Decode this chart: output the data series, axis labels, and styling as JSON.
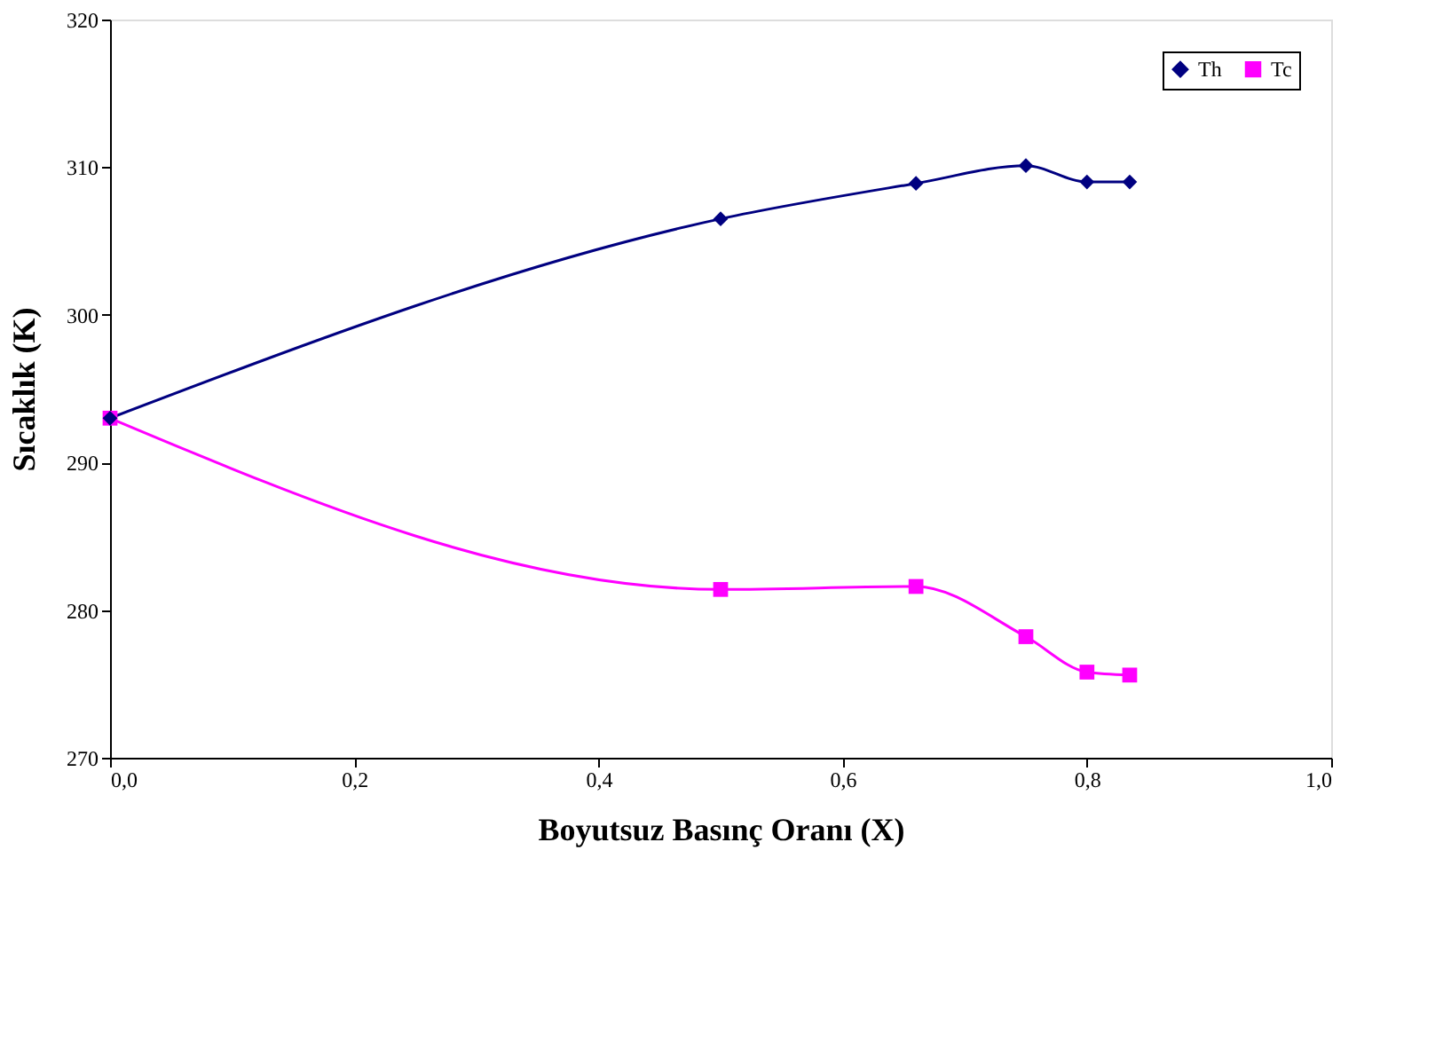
{
  "chart_data": {
    "type": "line",
    "xlabel": "Boyutsuz Basınç Oranı (X)",
    "ylabel": "Sıcaklık (K)",
    "xlim": [
      0,
      1
    ],
    "xticks": [
      {
        "value": 0,
        "label": "0,0"
      },
      {
        "value": 0.2,
        "label": "0,2"
      },
      {
        "value": 0.4,
        "label": "0,4"
      },
      {
        "value": 0.6,
        "label": "0,6"
      },
      {
        "value": 0.8,
        "label": "0,8"
      },
      {
        "value": 1,
        "label": "1,0"
      }
    ],
    "ylim": [
      270,
      320
    ],
    "yticks": [
      270,
      280,
      290,
      300,
      310,
      320
    ],
    "grid": false,
    "legend": "top right",
    "x": [
      0,
      0.5,
      0.66,
      0.75,
      0.8,
      0.835
    ],
    "series": [
      {
        "name": "Th",
        "color": "#000080",
        "marker": "diamond",
        "values": [
          293,
          306.5,
          308.9,
          310.1,
          309.0,
          309.0
        ]
      },
      {
        "name": "Tc",
        "color": "#ff00ff",
        "marker": "square",
        "values": [
          293,
          281.4,
          281.6,
          278.2,
          275.8,
          275.6
        ]
      }
    ]
  }
}
